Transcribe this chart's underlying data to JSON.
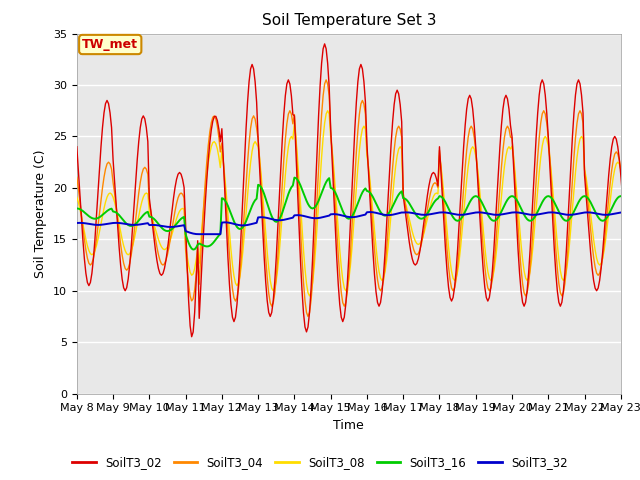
{
  "title": "Soil Temperature Set 3",
  "xlabel": "Time",
  "ylabel": "Soil Temperature (C)",
  "ylim": [
    0,
    35
  ],
  "background_color": "#ffffff",
  "plot_bg_color": "#e8e8e8",
  "grid_color": "#ffffff",
  "annotation_text": "TW_met",
  "annotation_bg": "#ffffcc",
  "annotation_border": "#cc8800",
  "annotation_text_color": "#cc0000",
  "series_colors": {
    "SoilT3_02": "#dd0000",
    "SoilT3_04": "#ff8800",
    "SoilT3_08": "#ffdd00",
    "SoilT3_16": "#00cc00",
    "SoilT3_32": "#0000cc"
  },
  "x_tick_labels": [
    "May 8",
    "May 9",
    "May 10",
    "May 11",
    "May 12",
    "May 13",
    "May 14",
    "May 15",
    "May 16",
    "May 17",
    "May 18",
    "May 19",
    "May 20",
    "May 21",
    "May 22",
    "May 23"
  ],
  "x_tick_positions": [
    0,
    1,
    2,
    3,
    4,
    5,
    6,
    7,
    8,
    9,
    10,
    11,
    12,
    13,
    14,
    15
  ],
  "yticks": [
    0,
    5,
    10,
    15,
    20,
    25,
    30,
    35
  ],
  "legend_labels": [
    "SoilT3_02",
    "SoilT3_04",
    "SoilT3_08",
    "SoilT3_16",
    "SoilT3_32"
  ]
}
